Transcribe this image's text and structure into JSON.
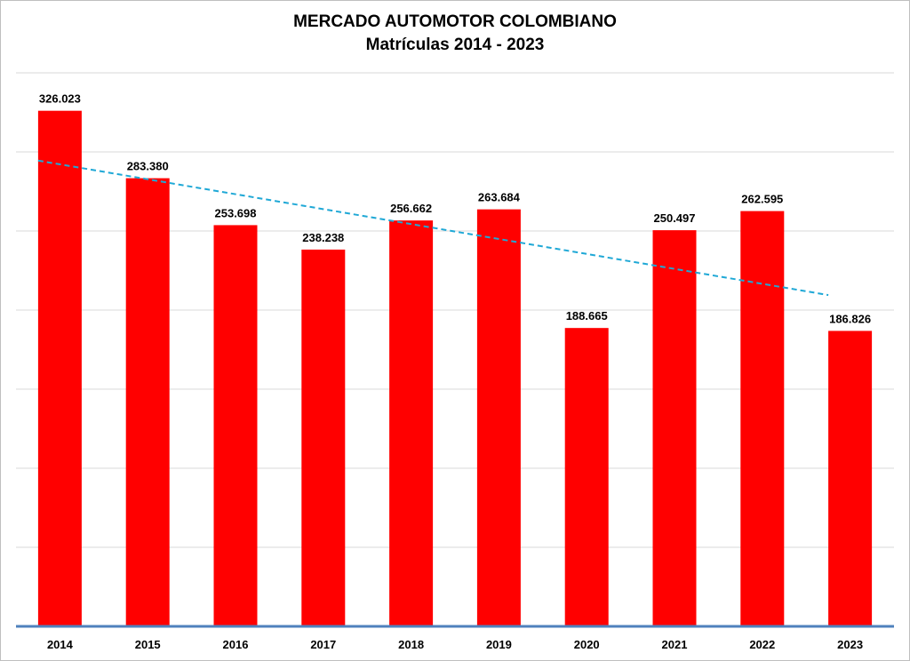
{
  "chart_data": {
    "type": "bar",
    "title": "MERCADO AUTOMOTOR COLOMBIANO",
    "subtitle": "Matrículas 2014 - 2023",
    "xlabel": "",
    "ylabel": "",
    "categories": [
      "2014",
      "2015",
      "2016",
      "2017",
      "2018",
      "2019",
      "2020",
      "2021",
      "2022",
      "2023"
    ],
    "values": [
      326023,
      283380,
      253698,
      238238,
      256662,
      263684,
      188665,
      250497,
      262595,
      186826
    ],
    "data_labels": [
      "326.023",
      "283.380",
      "253.698",
      "238.238",
      "256.662",
      "263.684",
      "188.665",
      "250.497",
      "262.595",
      "186.826"
    ],
    "ylim": [
      0,
      350000
    ],
    "y_gridline_step": 50000,
    "y_tick_labels_shown": false,
    "grid": true,
    "legend": "none",
    "trendline": {
      "type": "linear",
      "style": "dashed",
      "start_value": 294500,
      "end_value": 209500
    },
    "colors": {
      "bar": "#ff0000",
      "trendline": "#1fa8d6",
      "gridline": "#d9d9d9",
      "axis": "#4f81bd",
      "text": "#000000"
    }
  }
}
